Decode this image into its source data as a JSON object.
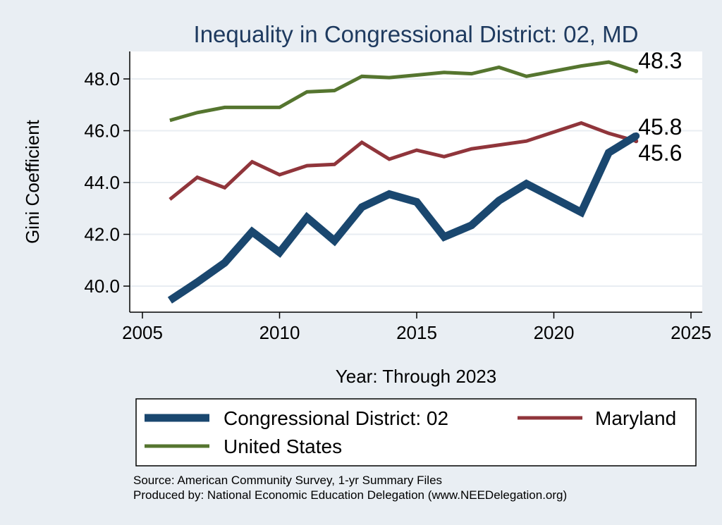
{
  "chart_data": {
    "type": "line",
    "title": "Inequality in Congressional District:  02, MD",
    "xlabel": "Year: Through 2023",
    "ylabel": "Gini Coefficient",
    "xlim": [
      2005,
      2025
    ],
    "ylim": [
      39.0,
      49.0
    ],
    "xticks": [
      2005,
      2010,
      2015,
      2020,
      2025
    ],
    "yticks": [
      40.0,
      42.0,
      44.0,
      46.0,
      48.0
    ],
    "grid": true,
    "legend_position": "bottom",
    "x": [
      2006,
      2007,
      2008,
      2009,
      2010,
      2011,
      2012,
      2013,
      2014,
      2015,
      2016,
      2017,
      2018,
      2019,
      2020,
      2021,
      2022,
      2023
    ],
    "series": [
      {
        "name": "Congressional District:  02",
        "color": "#1a476f",
        "width": 11,
        "values": [
          39.45,
          40.15,
          40.9,
          42.1,
          41.3,
          42.65,
          41.75,
          43.05,
          43.55,
          43.25,
          41.9,
          42.35,
          43.3,
          43.95,
          43.4,
          42.85,
          45.15,
          45.8
        ],
        "end_label": "45.8"
      },
      {
        "name": "Maryland",
        "color": "#90353b",
        "width": 5,
        "values": [
          43.35,
          44.2,
          43.8,
          44.8,
          44.3,
          44.65,
          44.7,
          45.55,
          44.9,
          45.25,
          45.0,
          45.3,
          45.45,
          45.6,
          45.95,
          46.3,
          45.9,
          45.6
        ],
        "end_label": "45.6"
      },
      {
        "name": "United States",
        "color": "#55752f",
        "width": 5,
        "values": [
          46.4,
          46.7,
          46.9,
          46.9,
          46.9,
          47.5,
          47.55,
          48.1,
          48.05,
          48.15,
          48.25,
          48.2,
          48.45,
          48.1,
          48.3,
          48.5,
          48.65,
          48.3
        ],
        "end_label": "48.3"
      }
    ],
    "source_lines": [
      "Source: American Community Survey, 1-yr Summary Files",
      "Produced by: National Economic Education Delegation (www.NEEDelegation.org)"
    ]
  }
}
